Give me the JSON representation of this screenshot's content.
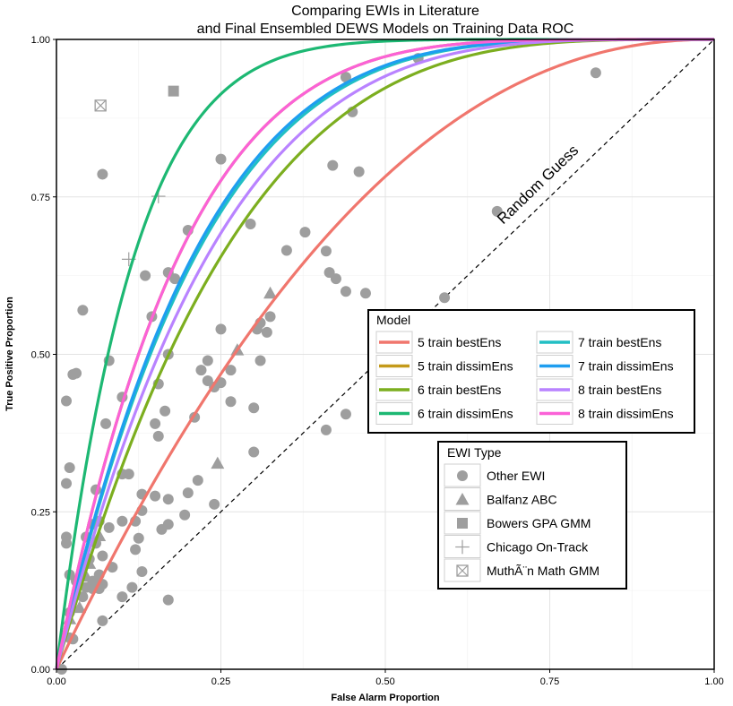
{
  "chart_data": {
    "type": "line",
    "title_line1": "Comparing EWIs in Literature",
    "title_line2": "and Final Ensembled DEWS Models on Training Data ROC",
    "xlabel": "False Alarm Proportion",
    "ylabel": "True Positive Proportion",
    "xlim": [
      0,
      1
    ],
    "ylim": [
      0,
      1
    ],
    "x_ticks": [
      "0.00",
      "0.25",
      "0.50",
      "0.75",
      "1.00"
    ],
    "y_ticks": [
      "0.00",
      "0.25",
      "0.50",
      "0.75",
      "1.00"
    ],
    "grid": true,
    "annotation": "Random Guess",
    "model_legend": {
      "title": "Model",
      "placement": "right-center",
      "series": [
        {
          "name": "5 train bestEns",
          "color": "#f0766d",
          "k": 2.2
        },
        {
          "name": "5 train dissimEns",
          "color": "#c49a1a",
          "k": 5.2
        },
        {
          "name": "6 train bestEns",
          "color": "#7cae1f",
          "k": 3.7
        },
        {
          "name": "6 train dissimEns",
          "color": "#1db873",
          "k": 8.5
        },
        {
          "name": "7 train bestEns",
          "color": "#22bfc4",
          "k": 4.5
        },
        {
          "name": "7 train dissimEns",
          "color": "#1e9ef0",
          "k": 4.6
        },
        {
          "name": "8 train bestEns",
          "color": "#b983ff",
          "k": 4.1
        },
        {
          "name": "8 train dissimEns",
          "color": "#fb61d7",
          "k": 5.2
        }
      ]
    },
    "ewi_legend": {
      "title": "EWI Type",
      "placement": "bottom-right",
      "types": [
        {
          "name": "Other EWI",
          "shape": "circle"
        },
        {
          "name": "Balfanz ABC",
          "shape": "triangle"
        },
        {
          "name": "Bowers GPA GMM",
          "shape": "square"
        },
        {
          "name": "Chicago On-Track",
          "shape": "cross"
        },
        {
          "name": "MuthÃ¨n Math GMM",
          "shape": "boxed-x"
        }
      ]
    },
    "points": {
      "other_ewi": [
        [
          0.07,
          0.786
        ],
        [
          0.42,
          0.8
        ],
        [
          0.44,
          0.94
        ],
        [
          0.45,
          0.885
        ],
        [
          0.46,
          0.79
        ],
        [
          0.25,
          0.81
        ],
        [
          0.55,
          0.97
        ],
        [
          0.82,
          0.947
        ],
        [
          0.67,
          0.727
        ],
        [
          0.295,
          0.707
        ],
        [
          0.378,
          0.694
        ],
        [
          0.2,
          0.697
        ],
        [
          0.35,
          0.665
        ],
        [
          0.41,
          0.664
        ],
        [
          0.415,
          0.63
        ],
        [
          0.425,
          0.62
        ],
        [
          0.44,
          0.6
        ],
        [
          0.47,
          0.597
        ],
        [
          0.59,
          0.59
        ],
        [
          0.17,
          0.63
        ],
        [
          0.18,
          0.62
        ],
        [
          0.135,
          0.625
        ],
        [
          0.04,
          0.57
        ],
        [
          0.145,
          0.56
        ],
        [
          0.325,
          0.56
        ],
        [
          0.31,
          0.55
        ],
        [
          0.305,
          0.54
        ],
        [
          0.32,
          0.535
        ],
        [
          0.25,
          0.54
        ],
        [
          0.17,
          0.5
        ],
        [
          0.08,
          0.49
        ],
        [
          0.03,
          0.47
        ],
        [
          0.025,
          0.468
        ],
        [
          0.31,
          0.49
        ],
        [
          0.23,
          0.49
        ],
        [
          0.22,
          0.475
        ],
        [
          0.265,
          0.475
        ],
        [
          0.25,
          0.455
        ],
        [
          0.24,
          0.448
        ],
        [
          0.23,
          0.458
        ],
        [
          0.155,
          0.453
        ],
        [
          0.1,
          0.432
        ],
        [
          0.015,
          0.426
        ],
        [
          0.265,
          0.425
        ],
        [
          0.3,
          0.415
        ],
        [
          0.165,
          0.41
        ],
        [
          0.21,
          0.4
        ],
        [
          0.44,
          0.405
        ],
        [
          0.075,
          0.39
        ],
        [
          0.41,
          0.38
        ],
        [
          0.15,
          0.39
        ],
        [
          0.155,
          0.37
        ],
        [
          0.3,
          0.345
        ],
        [
          0.02,
          0.32
        ],
        [
          0.1,
          0.31
        ],
        [
          0.11,
          0.31
        ],
        [
          0.215,
          0.3
        ],
        [
          0.015,
          0.295
        ],
        [
          0.06,
          0.285
        ],
        [
          0.2,
          0.28
        ],
        [
          0.13,
          0.278
        ],
        [
          0.15,
          0.275
        ],
        [
          0.17,
          0.27
        ],
        [
          0.24,
          0.262
        ],
        [
          0.13,
          0.252
        ],
        [
          0.195,
          0.245
        ],
        [
          0.1,
          0.235
        ],
        [
          0.12,
          0.235
        ],
        [
          0.065,
          0.235
        ],
        [
          0.17,
          0.23
        ],
        [
          0.08,
          0.225
        ],
        [
          0.055,
          0.23
        ],
        [
          0.16,
          0.222
        ],
        [
          0.045,
          0.21
        ],
        [
          0.015,
          0.21
        ],
        [
          0.125,
          0.208
        ],
        [
          0.06,
          0.2
        ],
        [
          0.015,
          0.2
        ],
        [
          0.12,
          0.19
        ],
        [
          0.07,
          0.18
        ],
        [
          0.05,
          0.175
        ],
        [
          0.085,
          0.162
        ],
        [
          0.02,
          0.15
        ],
        [
          0.065,
          0.15
        ],
        [
          0.055,
          0.14
        ],
        [
          0.07,
          0.135
        ],
        [
          0.13,
          0.155
        ],
        [
          0.03,
          0.14
        ],
        [
          0.045,
          0.13
        ],
        [
          0.065,
          0.128
        ],
        [
          0.055,
          0.128
        ],
        [
          0.1,
          0.115
        ],
        [
          0.115,
          0.13
        ],
        [
          0.04,
          0.115
        ],
        [
          0.17,
          0.11
        ],
        [
          0.02,
          0.09
        ],
        [
          0.07,
          0.077
        ],
        [
          0.02,
          0.05
        ],
        [
          0.025,
          0.048
        ],
        [
          0.008,
          0.0
        ]
      ],
      "balfanz_abc": [
        [
          0.325,
          0.597
        ],
        [
          0.275,
          0.507
        ],
        [
          0.245,
          0.327
        ],
        [
          0.065,
          0.212
        ],
        [
          0.05,
          0.168
        ],
        [
          0.045,
          0.148
        ],
        [
          0.06,
          0.14
        ],
        [
          0.02,
          0.08
        ],
        [
          0.035,
          0.098
        ]
      ],
      "bowers_gpa_gmm": [
        [
          0.178,
          0.918
        ]
      ],
      "chicago_on_track": [
        [
          0.155,
          0.751
        ],
        [
          0.11,
          0.651
        ]
      ],
      "muthen_math_gmm": [
        [
          0.067,
          0.895
        ]
      ]
    }
  }
}
